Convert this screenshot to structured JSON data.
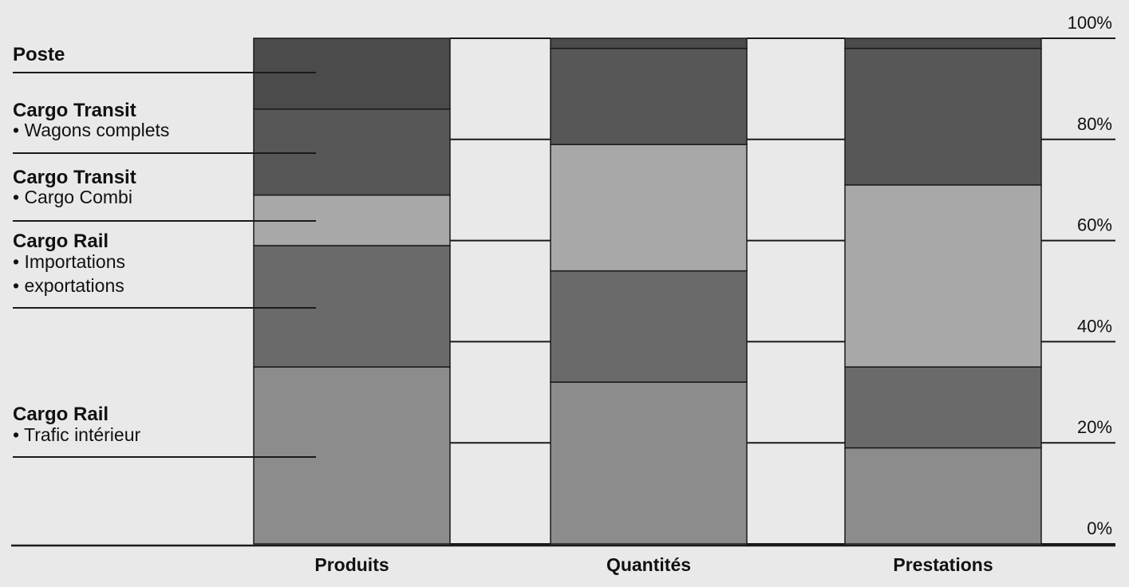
{
  "chart_data": {
    "type": "bar",
    "stacked": true,
    "categories": [
      "Produits",
      "Quantités",
      "Prestations"
    ],
    "series": [
      {
        "name": "Cargo Rail • Trafic intérieur",
        "legend_title": "Cargo Rail",
        "legend_lines": [
          "• Trafic intérieur"
        ],
        "color": "#8c8c8c",
        "values": [
          35,
          32,
          19
        ]
      },
      {
        "name": "Cargo Rail • Importations • exportations",
        "legend_title": "Cargo Rail",
        "legend_lines": [
          "• Importations",
          "• exportations"
        ],
        "color": "#6a6a6a",
        "values": [
          24,
          22,
          16
        ]
      },
      {
        "name": "Cargo Transit • Cargo Combi",
        "legend_title": "Cargo Transit",
        "legend_lines": [
          "• Cargo Combi"
        ],
        "color": "#a8a8a8",
        "values": [
          10,
          25,
          36
        ]
      },
      {
        "name": "Cargo Transit • Wagons complets",
        "legend_title": "Cargo Transit",
        "legend_lines": [
          "• Wagons complets"
        ],
        "color": "#575757",
        "values": [
          17,
          19,
          27
        ]
      },
      {
        "name": "Poste",
        "legend_title": "Poste",
        "legend_lines": [],
        "color": "#4b4b4b",
        "values": [
          14,
          2,
          2
        ]
      }
    ],
    "y_ticks": [
      "0%",
      "20%",
      "40%",
      "60%",
      "80%",
      "100%"
    ],
    "ylim": [
      0,
      100
    ],
    "grid": true,
    "legend_position": "left",
    "title": "",
    "xlabel": "",
    "ylabel": ""
  }
}
